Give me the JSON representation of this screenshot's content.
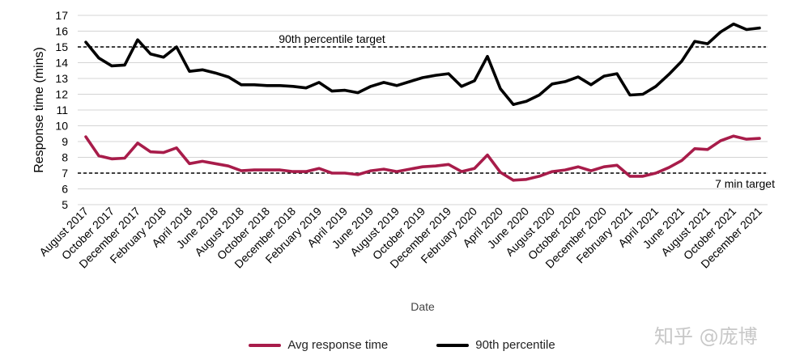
{
  "chart_data": {
    "type": "line",
    "xlabel": "Date",
    "ylabel": "Response time (mins)",
    "ylim": [
      5,
      17
    ],
    "yticks": [
      5,
      6,
      7,
      8,
      9,
      10,
      11,
      12,
      13,
      14,
      15,
      16,
      17
    ],
    "grid": "horizontal",
    "legend_position": "bottom",
    "x": [
      "August 2017",
      "September 2017",
      "October 2017",
      "November 2017",
      "December 2017",
      "January 2018",
      "February 2018",
      "March 2018",
      "April 2018",
      "May 2018",
      "June 2018",
      "July 2018",
      "August 2018",
      "September 2018",
      "October 2018",
      "November 2018",
      "December 2018",
      "January 2019",
      "February 2019",
      "March 2019",
      "April 2019",
      "May 2019",
      "June 2019",
      "July 2019",
      "August 2019",
      "September 2019",
      "October 2019",
      "November 2019",
      "December 2019",
      "January 2020",
      "February 2020",
      "March 2020",
      "April 2020",
      "May 2020",
      "June 2020",
      "July 2020",
      "August 2020",
      "September 2020",
      "October 2020",
      "November 2020",
      "December 2020",
      "January 2021",
      "February 2021",
      "March 2021",
      "April 2021",
      "May 2021",
      "June 2021",
      "July 2021",
      "August 2021",
      "September 2021",
      "October 2021",
      "November 2021",
      "December 2021"
    ],
    "x_tick_labels": [
      "August 2017",
      "October 2017",
      "December 2017",
      "February 2018",
      "April 2018",
      "June 2018",
      "August 2018",
      "October 2018",
      "December 2018",
      "February 2019",
      "April 2019",
      "June 2019",
      "August 2019",
      "October 2019",
      "December 2019",
      "February 2020",
      "April 2020",
      "June 2020",
      "August 2020",
      "October 2020",
      "December 2020",
      "February 2021",
      "April 2021",
      "June 2021",
      "August 2021",
      "October 2021",
      "December 2021"
    ],
    "series": [
      {
        "name": "Avg response time",
        "color": "#a81c4a",
        "values": [
          9.3,
          8.1,
          7.9,
          7.95,
          8.9,
          8.35,
          8.3,
          8.6,
          7.6,
          7.75,
          7.6,
          7.45,
          7.15,
          7.2,
          7.2,
          7.2,
          7.1,
          7.1,
          7.3,
          7.0,
          7.0,
          6.9,
          7.15,
          7.25,
          7.1,
          7.25,
          7.4,
          7.45,
          7.55,
          7.1,
          7.3,
          8.15,
          7.05,
          6.55,
          6.6,
          6.8,
          7.1,
          7.2,
          7.4,
          7.15,
          7.4,
          7.5,
          6.8,
          6.8,
          7.0,
          7.35,
          7.8,
          8.55,
          8.5,
          9.05,
          9.35,
          9.15,
          9.2
        ]
      },
      {
        "name": "90th percentile",
        "color": "#000000",
        "values": [
          15.3,
          14.3,
          13.8,
          13.85,
          15.45,
          14.55,
          14.35,
          15.0,
          13.45,
          13.55,
          13.35,
          13.1,
          12.6,
          12.6,
          12.55,
          12.55,
          12.5,
          12.4,
          12.75,
          12.2,
          12.25,
          12.1,
          12.5,
          12.75,
          12.55,
          12.8,
          13.05,
          13.2,
          13.3,
          12.5,
          12.85,
          14.4,
          12.35,
          11.35,
          11.55,
          11.95,
          12.65,
          12.8,
          13.1,
          12.6,
          13.15,
          13.3,
          11.95,
          12.0,
          12.5,
          13.25,
          14.1,
          15.35,
          15.2,
          15.95,
          16.45,
          16.1,
          16.2
        ]
      }
    ],
    "reference_lines": [
      {
        "value": 15,
        "label": "90th percentile target"
      },
      {
        "value": 7,
        "label": "7 min target"
      }
    ]
  },
  "watermark": "知乎 @庞博"
}
